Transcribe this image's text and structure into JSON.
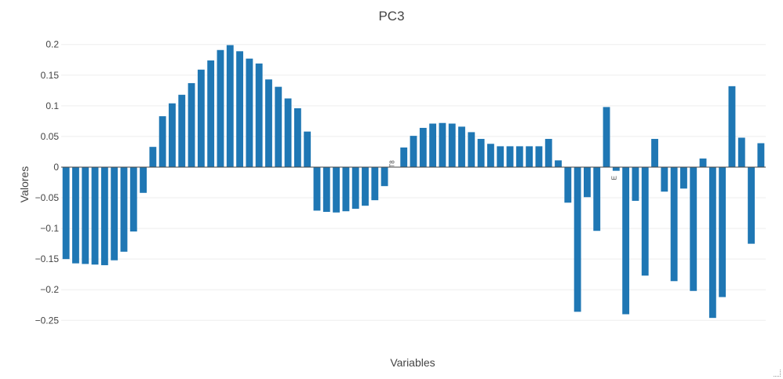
{
  "chart_data": {
    "type": "bar",
    "title": "PC3",
    "xlabel": "Variables",
    "ylabel": "Valores",
    "ylim": [
      -0.265,
      0.215
    ],
    "yticks": [
      0.2,
      0.15,
      0.1,
      0.05,
      0,
      -0.05,
      -0.1,
      -0.15,
      -0.2,
      -0.25
    ],
    "ytick_labels": [
      "0.2",
      "0.15",
      "0.1",
      "0.05",
      "0",
      "−0.05",
      "−0.1",
      "−0.15",
      "−0.2",
      "−0.25"
    ],
    "grid": true,
    "outside_labels": [
      "T8",
      "E"
    ],
    "values": [
      -0.15,
      -0.157,
      -0.158,
      -0.159,
      -0.16,
      -0.152,
      -0.138,
      -0.105,
      -0.042,
      0.033,
      0.083,
      0.104,
      0.118,
      0.137,
      0.159,
      0.174,
      0.191,
      0.199,
      0.189,
      0.177,
      0.169,
      0.143,
      0.131,
      0.112,
      0.096,
      0.058,
      -0.071,
      -0.073,
      -0.074,
      -0.072,
      -0.068,
      -0.063,
      -0.054,
      -0.031,
      0.0,
      0.032,
      0.051,
      0.064,
      0.071,
      0.072,
      0.071,
      0.066,
      0.057,
      0.046,
      0.038,
      0.034,
      0.034,
      0.034,
      0.034,
      0.034,
      0.046,
      0.011,
      -0.058,
      -0.236,
      -0.049,
      -0.104,
      0.098,
      -0.006,
      -0.24,
      -0.055,
      -0.177,
      0.046,
      -0.04,
      -0.186,
      -0.035,
      -0.202,
      0.014,
      -0.246,
      -0.212,
      0.132,
      0.048,
      -0.125,
      0.039
    ]
  }
}
